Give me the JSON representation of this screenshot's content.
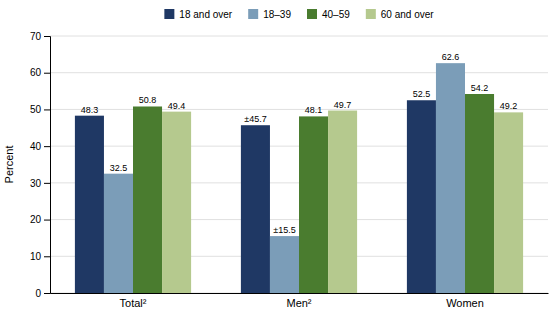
{
  "chart_data": {
    "type": "bar",
    "categories": [
      "Total²",
      "Men²",
      "Women"
    ],
    "series": [
      {
        "name": "18 and over",
        "color": "#1f3864",
        "values": [
          48.3,
          45.7,
          52.5
        ],
        "value_labels": [
          "48.3",
          "±45.7",
          "52.5"
        ]
      },
      {
        "name": "18–39",
        "color": "#7b9db8",
        "values": [
          32.5,
          15.5,
          62.6
        ],
        "value_labels": [
          "32.5",
          "±15.5",
          "62.6"
        ]
      },
      {
        "name": "40–59",
        "color": "#4a7c2f",
        "values": [
          50.8,
          48.1,
          54.2
        ],
        "value_labels": [
          "50.8",
          "48.1",
          "54.2"
        ]
      },
      {
        "name": "60 and over",
        "color": "#b5c98e",
        "values": [
          49.4,
          49.7,
          49.2
        ],
        "value_labels": [
          "49.4",
          "49.7",
          "49.2"
        ]
      }
    ],
    "y_label": "Percent",
    "ylim": [
      0,
      70
    ],
    "yticks": [
      0,
      10,
      20,
      30,
      40,
      50,
      60,
      70
    ],
    "grid": true,
    "legend": "top",
    "data_labels": true
  }
}
